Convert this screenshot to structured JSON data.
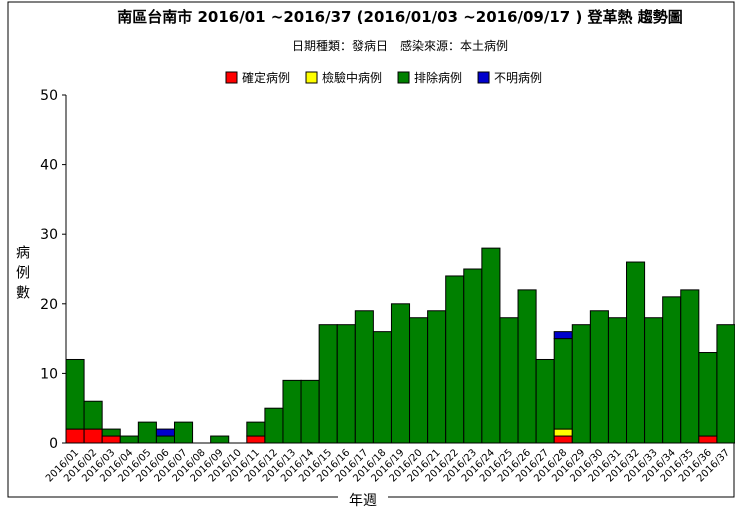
{
  "chart_data": {
    "type": "bar",
    "stacked": true,
    "title": "南區台南市 2016/01 ~2016/37 (2016/01/03 ~2016/09/17 ) 登革熱 趨勢圖",
    "subtitle": "日期種類：發病日　感染來源：本土病例",
    "x_label": "年週",
    "y_label": "病例數",
    "categories": [
      "2016/01",
      "2016/02",
      "2016/03",
      "2016/04",
      "2016/05",
      "2016/06",
      "2016/07",
      "2016/08",
      "2016/09",
      "2016/10",
      "2016/11",
      "2016/12",
      "2016/13",
      "2016/14",
      "2016/15",
      "2016/16",
      "2016/17",
      "2016/18",
      "2016/19",
      "2016/20",
      "2016/21",
      "2016/22",
      "2016/23",
      "2016/24",
      "2016/25",
      "2016/26",
      "2016/27",
      "2016/28",
      "2016/29",
      "2016/30",
      "2016/31",
      "2016/32",
      "2016/33",
      "2016/34",
      "2016/35",
      "2016/36",
      "2016/37"
    ],
    "series": [
      {
        "name": "確定病例",
        "color": "#ff0000",
        "values": [
          2,
          2,
          1,
          0,
          0,
          0,
          0,
          0,
          0,
          0,
          1,
          0,
          0,
          0,
          0,
          0,
          0,
          0,
          0,
          0,
          0,
          0,
          0,
          0,
          0,
          0,
          0,
          1,
          0,
          0,
          0,
          0,
          0,
          0,
          0,
          1,
          0
        ]
      },
      {
        "name": "檢驗中病例",
        "color": "#ffff00",
        "values": [
          0,
          0,
          0,
          0,
          0,
          0,
          0,
          0,
          0,
          0,
          0,
          0,
          0,
          0,
          0,
          0,
          0,
          0,
          0,
          0,
          0,
          0,
          0,
          0,
          0,
          0,
          0,
          1,
          0,
          0,
          0,
          0,
          0,
          0,
          0,
          0,
          0
        ]
      },
      {
        "name": "排除病例",
        "color": "#008000",
        "values": [
          10,
          4,
          1,
          1,
          3,
          1,
          3,
          0,
          1,
          0,
          2,
          5,
          9,
          9,
          17,
          17,
          19,
          16,
          20,
          18,
          19,
          24,
          25,
          28,
          18,
          22,
          12,
          13,
          17,
          19,
          18,
          26,
          18,
          21,
          22,
          12,
          17
        ]
      },
      {
        "name": "不明病例",
        "color": "#0000cc",
        "values": [
          0,
          0,
          0,
          0,
          0,
          1,
          0,
          0,
          0,
          0,
          0,
          0,
          0,
          0,
          0,
          0,
          0,
          0,
          0,
          0,
          0,
          0,
          0,
          0,
          0,
          0,
          0,
          1,
          0,
          0,
          0,
          0,
          0,
          0,
          0,
          0,
          0
        ]
      }
    ],
    "ylim": [
      0,
      50
    ],
    "yticks": [
      0,
      10,
      20,
      30,
      40,
      50
    ]
  }
}
